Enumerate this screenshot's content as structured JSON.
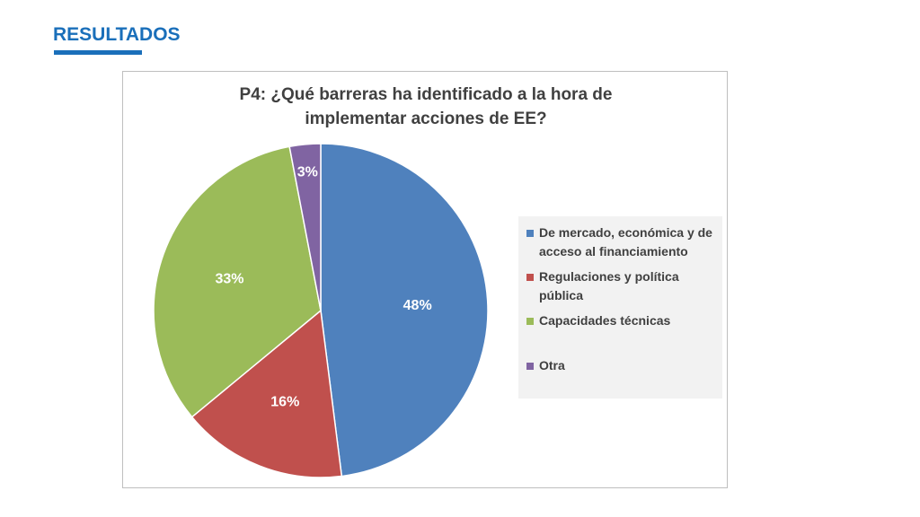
{
  "page": {
    "title": "RESULTADOS"
  },
  "chart_data": {
    "type": "pie",
    "title_lines": [
      "P4: ¿Qué barreras ha identificado a la hora de",
      "implementar acciones de EE?"
    ],
    "categories": [
      "De mercado, económica y de acceso al financiamiento",
      "Regulaciones y política pública",
      "Capacidades técnicas",
      "Otra"
    ],
    "values": [
      48,
      16,
      33,
      3
    ],
    "labels": [
      "48%",
      "16%",
      "33%",
      "3%"
    ],
    "colors": [
      "#4f81bd",
      "#c0504d",
      "#9bbb59",
      "#8064a2"
    ],
    "legend_position": "right"
  }
}
